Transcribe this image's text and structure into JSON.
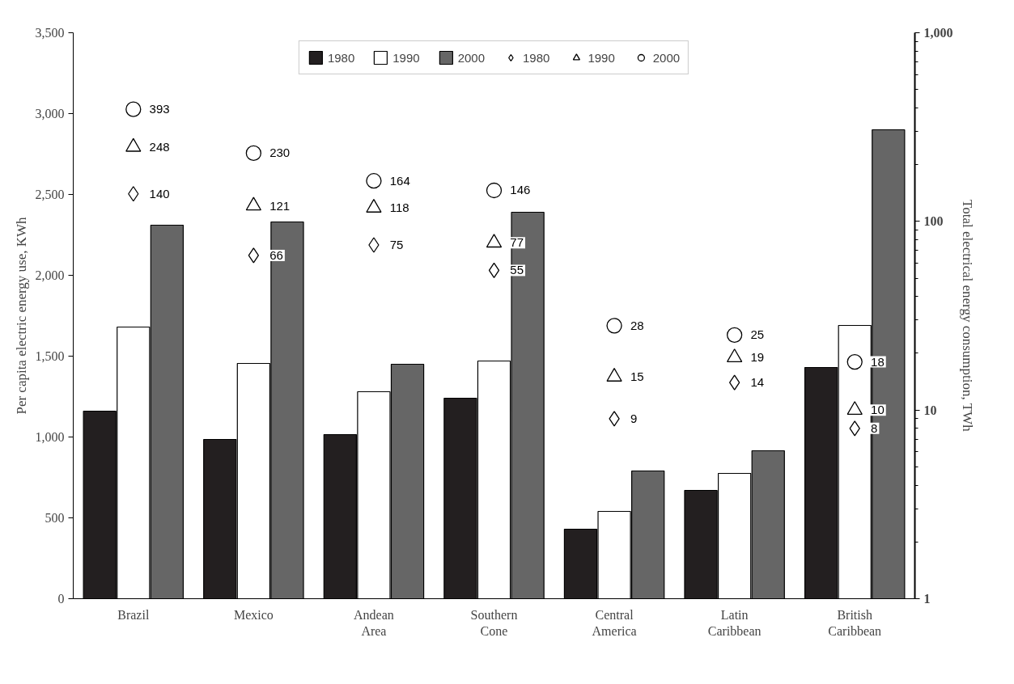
{
  "chart_data": {
    "type": "bar",
    "categories": [
      "Brazil",
      "Mexico",
      "Andean Area",
      "Southern Cone",
      "Central America",
      "Latin Caribbean",
      "British Caribbean"
    ],
    "ylabel": "Per capita electric energy use, KWh",
    "y2label": "Total electrical energy consumption, TWh",
    "ylim": [
      0,
      3500
    ],
    "yticks": [
      0,
      500,
      {
        "value": 1000,
        "label": "1,000"
      },
      {
        "value": 1500,
        "label": "1,500"
      },
      {
        "value": 2000,
        "label": "2,000"
      },
      {
        "value": 2500,
        "label": "2,500"
      },
      {
        "value": 3000,
        "label": "3,000"
      },
      {
        "value": 3500,
        "label": "3,500"
      }
    ],
    "y2lim": [
      1,
      1000
    ],
    "y2ticks": [
      1,
      10,
      100,
      {
        "value": 1000,
        "label": "1,000"
      }
    ],
    "log": "y2",
    "grid": false,
    "legend": "top",
    "series": [
      {
        "name": "1980",
        "color": "#231f20",
        "values": [
          1160,
          985,
          1015,
          1240,
          430,
          670,
          1430
        ]
      },
      {
        "name": "1990",
        "color": "#ffffff",
        "values": [
          1680,
          1455,
          1280,
          1470,
          540,
          775,
          1690
        ]
      },
      {
        "name": "2000",
        "color": "#666666",
        "values": [
          2310,
          2330,
          1450,
          2390,
          790,
          915,
          2900
        ]
      },
      {
        "name": "1980",
        "type": "scatter",
        "axis": "y2",
        "marker": "diamond",
        "color": "#000000",
        "values": [
          140,
          66,
          75,
          55,
          9,
          14,
          8
        ],
        "value_labels": [
          "140",
          "66",
          "75",
          "55",
          "9",
          "14",
          "8"
        ]
      },
      {
        "name": "1990",
        "type": "scatter",
        "axis": "y2",
        "marker": "triangle",
        "color": "#000000",
        "values": [
          248,
          121,
          118,
          77,
          15,
          19,
          10
        ],
        "value_labels": [
          "248",
          "121",
          "118",
          "77",
          "15",
          "19",
          "10"
        ]
      },
      {
        "name": "2000",
        "type": "scatter",
        "axis": "y2",
        "marker": "circle",
        "color": "#000000",
        "values": [
          393,
          230,
          164,
          146,
          28,
          25,
          18
        ],
        "value_labels": [
          "393",
          "230",
          "164",
          "146",
          "28",
          "25",
          "18"
        ]
      }
    ]
  }
}
